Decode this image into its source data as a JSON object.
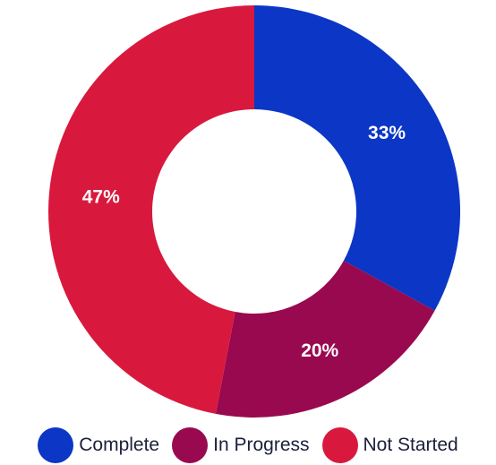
{
  "chart_data": {
    "type": "pie",
    "donut": true,
    "legend_position": "bottom",
    "slices": [
      {
        "name": "Complete",
        "value": 33,
        "label": "33%",
        "color": "#0b36c6"
      },
      {
        "name": "In Progress",
        "value": 20,
        "label": "20%",
        "color": "#99094f"
      },
      {
        "name": "Not Started",
        "value": 47,
        "label": "47%",
        "color": "#d8193d"
      }
    ]
  }
}
